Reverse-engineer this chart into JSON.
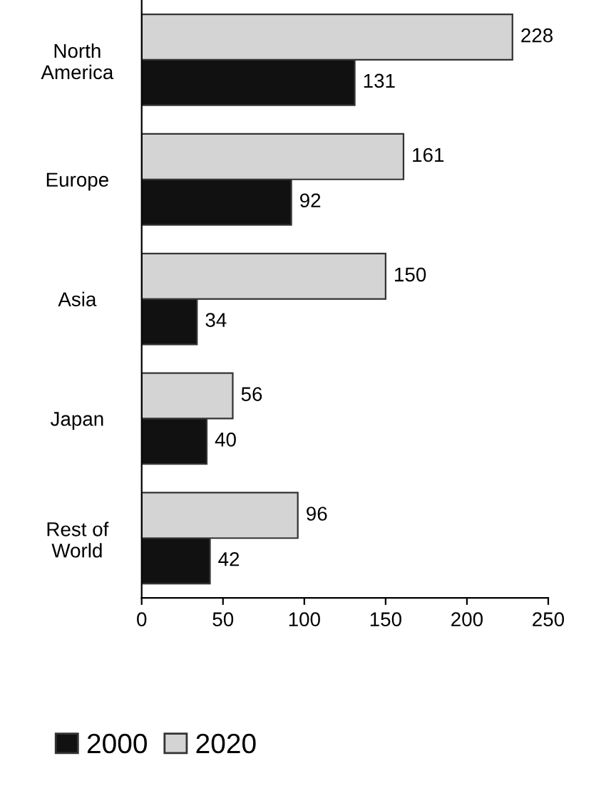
{
  "chart_data": {
    "type": "bar",
    "orientation": "horizontal",
    "categories": [
      "North\nAmerica",
      "Europe",
      "Asia",
      "Japan",
      "Rest of\nWorld"
    ],
    "series": [
      {
        "name": "2000",
        "color": "#111111",
        "values": [
          131,
          92,
          34,
          40,
          42
        ]
      },
      {
        "name": "2020",
        "color": "#d4d4d4",
        "values": [
          228,
          161,
          150,
          56,
          96
        ]
      }
    ],
    "xlim": [
      0,
      250
    ],
    "xticks": [
      0,
      50,
      100,
      150,
      200,
      250
    ],
    "data_labels": true,
    "grid": false,
    "legend": "bottom left"
  }
}
